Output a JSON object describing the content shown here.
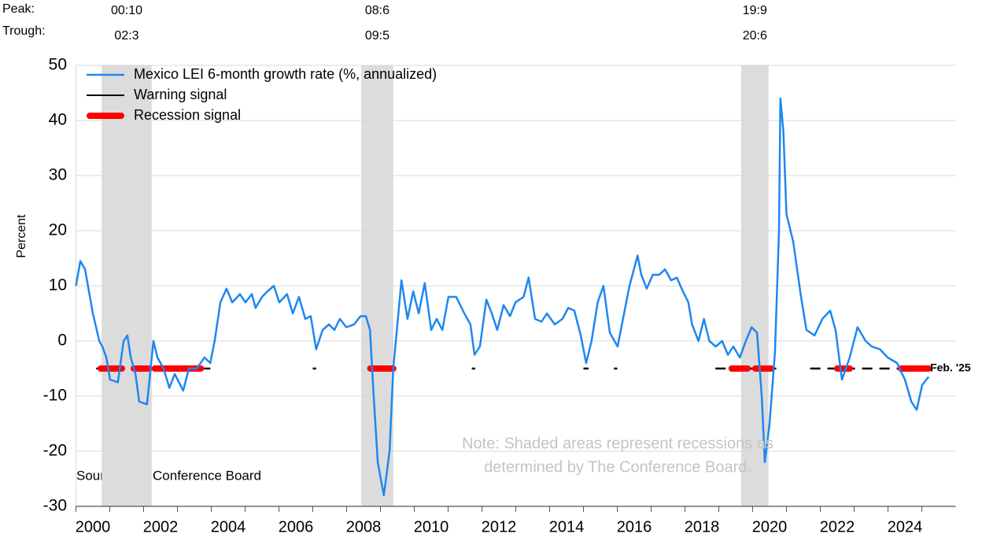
{
  "chart_data": {
    "type": "line",
    "ylabel": "Percent",
    "peak_label": "Peak:",
    "trough_label": "Trough:",
    "recessions": [
      {
        "peak": "00:10",
        "trough": "02:3",
        "start": 2000.76,
        "end": 2002.24
      },
      {
        "peak": "08:6",
        "trough": "09:5",
        "start": 2008.43,
        "end": 2009.38
      },
      {
        "peak": "19:9",
        "trough": "20:6",
        "start": 2019.66,
        "end": 2020.47
      }
    ],
    "series": [
      {
        "name": "Mexico LEI 6-month growth rate (%, annualized)",
        "color": "#1e87f0",
        "x": [
          2000.0,
          2000.13,
          2000.27,
          2000.5,
          2000.69,
          2000.78,
          2000.9,
          2001.01,
          2001.24,
          2001.41,
          2001.52,
          2001.62,
          2001.76,
          2001.87,
          2002.1,
          2002.29,
          2002.41,
          2002.59,
          2002.76,
          2002.92,
          2003.17,
          2003.34,
          2003.57,
          2003.8,
          2003.97,
          2004.1,
          2004.27,
          2004.45,
          2004.62,
          2004.85,
          2005.01,
          2005.2,
          2005.31,
          2005.5,
          2005.66,
          2005.85,
          2006.01,
          2006.24,
          2006.41,
          2006.59,
          2006.78,
          2006.94,
          2007.1,
          2007.29,
          2007.48,
          2007.64,
          2007.8,
          2007.99,
          2008.22,
          2008.41,
          2008.57,
          2008.69,
          2008.8,
          2008.92,
          2009.1,
          2009.27,
          2009.38,
          2009.5,
          2009.62,
          2009.8,
          2009.97,
          2010.13,
          2010.31,
          2010.5,
          2010.66,
          2010.83,
          2011.01,
          2011.24,
          2011.48,
          2011.66,
          2011.78,
          2011.94,
          2012.13,
          2012.29,
          2012.45,
          2012.64,
          2012.83,
          2012.99,
          2013.23,
          2013.38,
          2013.57,
          2013.76,
          2013.92,
          2014.15,
          2014.38,
          2014.55,
          2014.73,
          2014.92,
          2015.08,
          2015.24,
          2015.42,
          2015.59,
          2015.78,
          2016.01,
          2016.2,
          2016.36,
          2016.6,
          2016.71,
          2016.87,
          2017.05,
          2017.24,
          2017.41,
          2017.59,
          2017.76,
          2017.94,
          2018.1,
          2018.21,
          2018.4,
          2018.56,
          2018.72,
          2018.91,
          2019.1,
          2019.27,
          2019.43,
          2019.62,
          2019.8,
          2019.97,
          2020.13,
          2020.27,
          2020.36,
          2020.5,
          2020.66,
          2020.78,
          2020.82,
          2020.91,
          2021.0,
          2021.2,
          2021.43,
          2021.59,
          2021.83,
          2022.06,
          2022.29,
          2022.45,
          2022.64,
          2022.87,
          2023.1,
          2023.34,
          2023.52,
          2023.76,
          2023.99,
          2024.27,
          2024.5,
          2024.69,
          2024.85,
          2025.01,
          2025.2
        ],
        "values": [
          10,
          14.5,
          13,
          5,
          0,
          -1,
          -3,
          -7,
          -7.5,
          0,
          1,
          -3,
          -6,
          -11,
          -11.5,
          0,
          -3,
          -5,
          -8.5,
          -6,
          -9,
          -5,
          -5,
          -3,
          -4,
          0,
          7,
          9.5,
          7,
          8.5,
          7,
          8.5,
          6,
          8,
          9,
          10,
          7,
          8.5,
          5,
          8,
          4,
          4.5,
          -1.5,
          2,
          3,
          2,
          4,
          2.5,
          3,
          4.5,
          4.5,
          2,
          -10,
          -22,
          -28,
          -20,
          -5,
          3,
          11,
          4,
          9,
          5,
          10.5,
          2,
          4,
          2,
          8,
          8,
          5,
          3,
          -2.5,
          -1,
          7.5,
          5,
          2,
          6.5,
          4.5,
          7,
          8,
          11.5,
          4,
          3.5,
          5,
          3,
          4,
          6,
          5.5,
          1,
          -4,
          0,
          7,
          10,
          1.5,
          -1,
          5,
          10,
          15.5,
          12,
          9.5,
          12,
          12,
          13,
          11,
          11.5,
          9,
          7,
          3,
          0,
          4,
          0,
          -1,
          0,
          -2.5,
          -1,
          -3,
          0,
          2.5,
          1.5,
          -10,
          -22,
          -15,
          -2,
          20,
          44,
          38,
          23,
          18,
          8,
          2,
          1,
          4,
          5.5,
          2,
          -7,
          -3,
          2.5,
          0,
          -1,
          -1.5,
          -3,
          -4,
          -7,
          -11,
          -12.5,
          -8,
          -6.5
        ]
      }
    ],
    "warning_signal": {
      "name": "Warning signal",
      "color": "#000000",
      "level": -5,
      "intervals": [
        [
          2000.6,
          2004.1
        ],
        [
          2007.0,
          2007.1
        ],
        [
          2011.7,
          2011.8
        ],
        [
          2015.0,
          2015.15
        ],
        [
          2015.9,
          2016.0
        ],
        [
          2018.9,
          2020.7
        ],
        [
          2021.7,
          2025.2
        ]
      ]
    },
    "recession_signal": {
      "name": "Recession signal",
      "color": "#ff0000",
      "level": -5,
      "intervals": [
        [
          2000.73,
          2001.36
        ],
        [
          2001.71,
          2002.17
        ],
        [
          2002.33,
          2003.69
        ],
        [
          2008.7,
          2009.38
        ],
        [
          2019.38,
          2019.85
        ],
        [
          2020.08,
          2020.55
        ],
        [
          2022.5,
          2022.87
        ],
        [
          2024.38,
          2025.2
        ]
      ]
    },
    "end_label": "Feb. '25",
    "note": [
      "Note: Shaded areas represent recessions as",
      "determined by The Conference Board."
    ],
    "source": "Source: The Conference Board",
    "xlim": [
      2000,
      2026
    ],
    "xticks": [
      2000,
      2002,
      2004,
      2006,
      2008,
      2010,
      2012,
      2014,
      2016,
      2018,
      2020,
      2022,
      2024
    ],
    "ylim": [
      -30,
      50
    ],
    "yticks": [
      -30,
      -20,
      -10,
      0,
      10,
      20,
      30,
      40,
      50
    ],
    "grid": true
  }
}
